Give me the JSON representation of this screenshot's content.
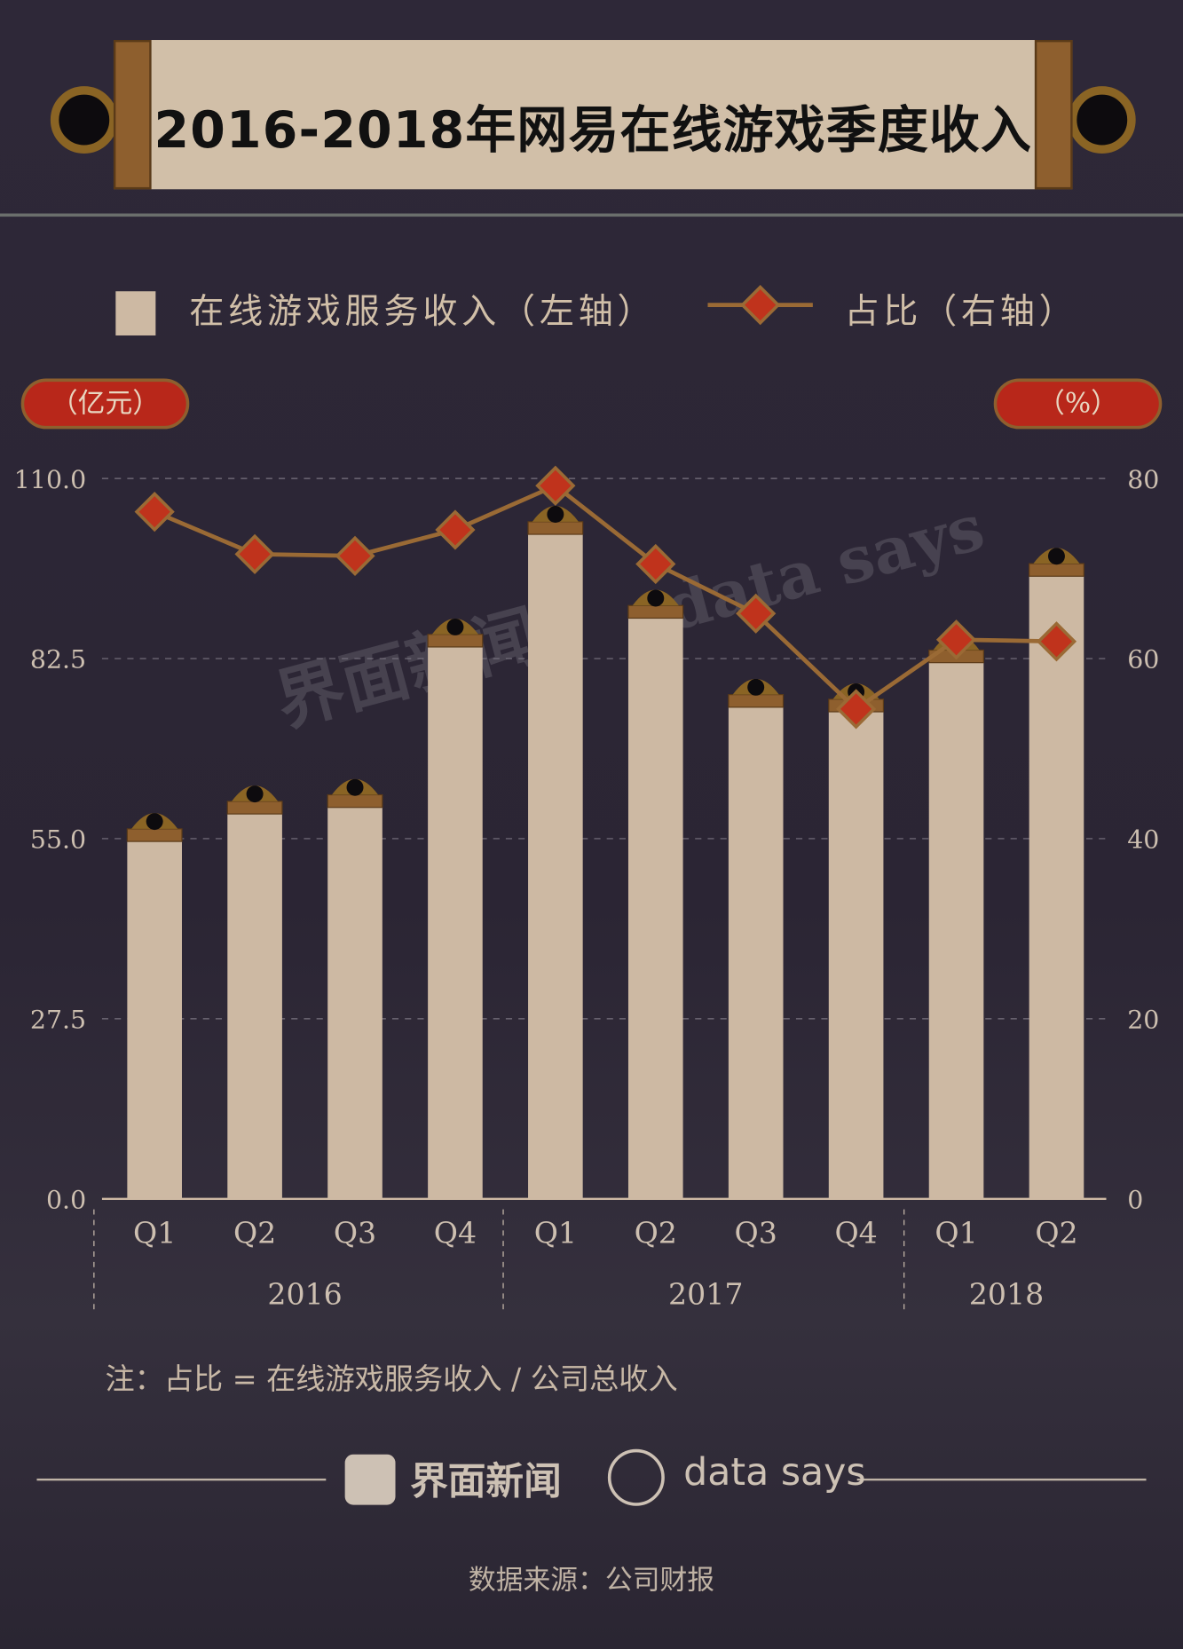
{
  "title": "2016-2018年网易在线游戏季度收入",
  "legend": {
    "bar_label": "在线游戏服务收入（左轴）",
    "line_label": "占比（右轴）"
  },
  "units": {
    "left": "（亿元）",
    "right": "（%）"
  },
  "note": "注：占比 = 在线游戏服务收入 / 公司总收入",
  "brand": {
    "cn": "界面新闻",
    "en": "data says"
  },
  "watermark": {
    "cn": "界面新闻",
    "en": "data says"
  },
  "source": "数据来源：公司财报",
  "colors": {
    "bar": "#cdb9a3",
    "line": "#9a6a35",
    "marker": "#c0331c",
    "background": "#2d2735"
  },
  "chart_data": {
    "type": "bar+line",
    "categories": [
      "Q1",
      "Q2",
      "Q3",
      "Q4",
      "Q1",
      "Q2",
      "Q3",
      "Q4",
      "Q1",
      "Q2"
    ],
    "years": [
      {
        "label": "2016",
        "span": 4
      },
      {
        "label": "2017",
        "span": 4
      },
      {
        "label": "2018",
        "span": 2
      }
    ],
    "series": [
      {
        "name": "在线游戏服务收入（左轴）",
        "type": "bar",
        "axis": "left",
        "values": [
          56.5,
          60.7,
          61.7,
          86.2,
          103.4,
          90.6,
          77.0,
          76.3,
          83.8,
          97.0
        ]
      },
      {
        "name": "占比（右轴）",
        "type": "line",
        "axis": "right",
        "values": [
          76.3,
          71.6,
          71.4,
          74.3,
          79.2,
          70.5,
          65.0,
          54.4,
          62.1,
          61.9
        ]
      }
    ],
    "left_axis": {
      "ylim": [
        0,
        110
      ],
      "ticks": [
        "0.0",
        "27.5",
        "55.0",
        "82.5",
        "110.0"
      ]
    },
    "right_axis": {
      "ylim": [
        0,
        80
      ],
      "ticks": [
        "0",
        "20",
        "40",
        "60",
        "80"
      ]
    },
    "grid": true,
    "legend_placement": "top"
  }
}
